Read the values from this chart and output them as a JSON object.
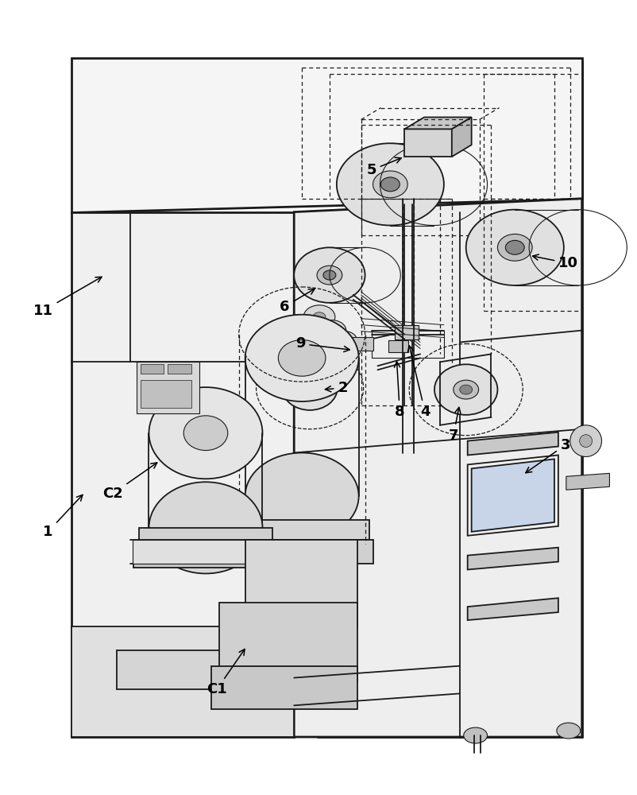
{
  "background_color": "#ffffff",
  "line_color": "#1a1a1a",
  "label_fontsize": 13,
  "label_fontweight": "bold",
  "lw_outer": 2.0,
  "lw_main": 1.3,
  "lw_thin": 0.8,
  "lw_dashed": 0.9
}
